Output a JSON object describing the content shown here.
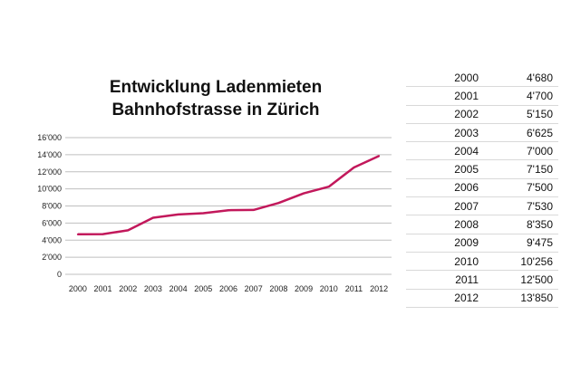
{
  "chart_data": {
    "type": "line",
    "title_lines": [
      "Entwicklung  Ladenmieten",
      "Bahnhofstrasse in Zürich"
    ],
    "xlabel": "",
    "ylabel": "",
    "categories": [
      "2000",
      "2001",
      "2002",
      "2003",
      "2004",
      "2005",
      "2006",
      "2007",
      "2008",
      "2009",
      "2010",
      "2011",
      "2012"
    ],
    "values": [
      4680,
      4700,
      5150,
      6625,
      7000,
      7150,
      7500,
      7530,
      8350,
      9475,
      10256,
      12500,
      13850
    ],
    "ylim": [
      0,
      16000
    ],
    "ytick_labels": [
      "0",
      "2'000",
      "4'000",
      "6'000",
      "8'000",
      "10'000",
      "12'000",
      "14'000",
      "16'000"
    ],
    "grid": true,
    "line_color": "#c2185b",
    "gridline_color": "#bfbfbf"
  },
  "table": {
    "rows": [
      {
        "year": "2000",
        "value": "4'680"
      },
      {
        "year": "2001",
        "value": "4'700"
      },
      {
        "year": "2002",
        "value": "5'150"
      },
      {
        "year": "2003",
        "value": "6'625"
      },
      {
        "year": "2004",
        "value": "7'000"
      },
      {
        "year": "2005",
        "value": "7'150"
      },
      {
        "year": "2006",
        "value": "7'500"
      },
      {
        "year": "2007",
        "value": "7'530"
      },
      {
        "year": "2008",
        "value": "8'350"
      },
      {
        "year": "2009",
        "value": "9'475"
      },
      {
        "year": "2010",
        "value": "10'256"
      },
      {
        "year": "2011",
        "value": "12'500"
      },
      {
        "year": "2012",
        "value": "13'850"
      }
    ]
  }
}
